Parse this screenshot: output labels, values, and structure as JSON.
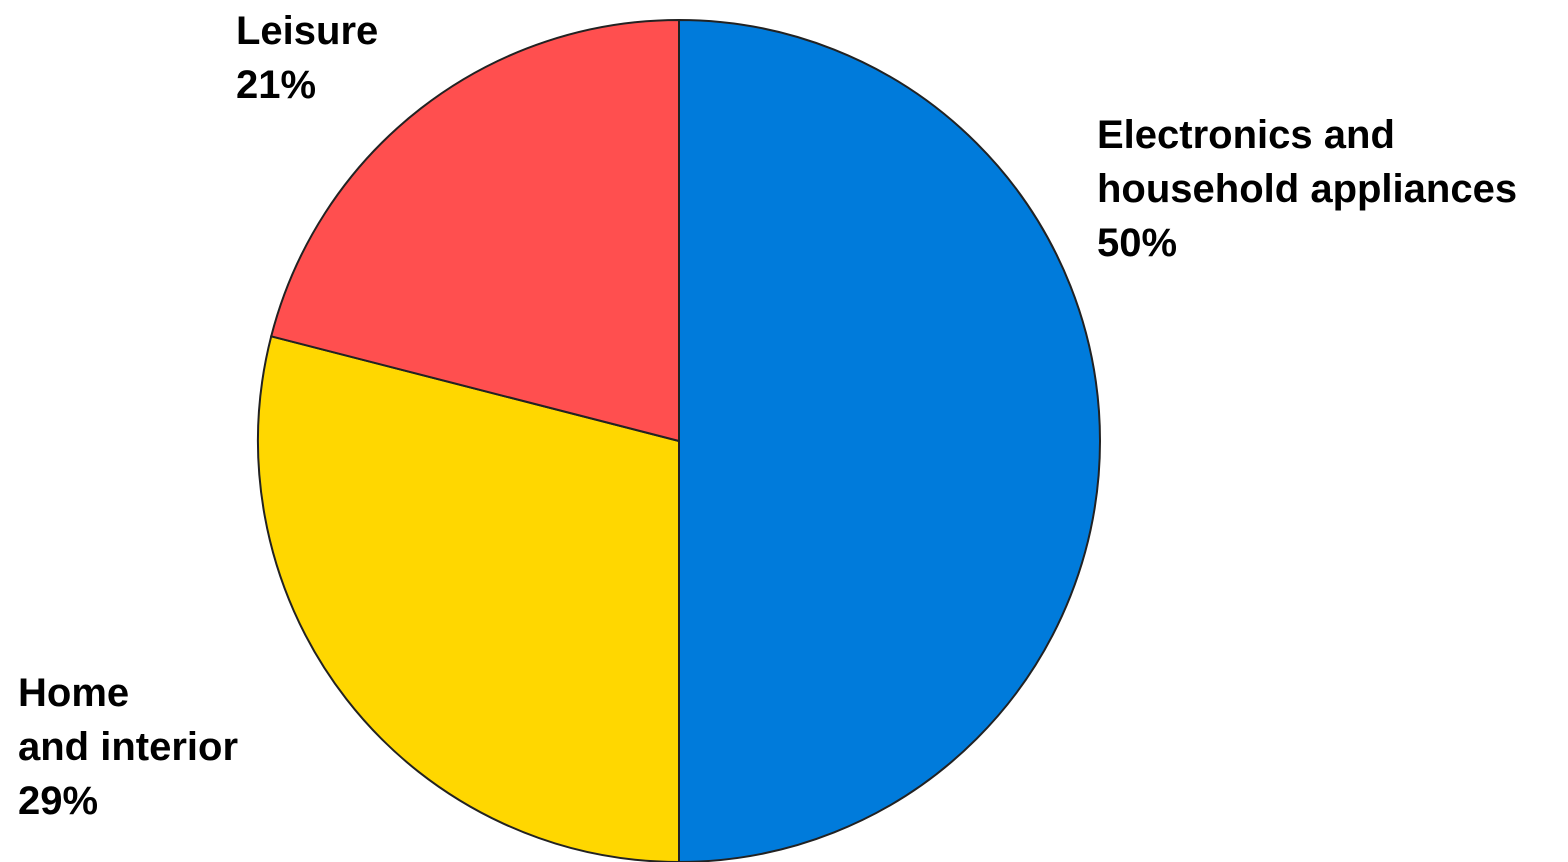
{
  "chart_data": {
    "type": "pie",
    "slices": [
      {
        "label_lines": [
          "Electronics and",
          "household appliances"
        ],
        "percent_label": "50%",
        "value": 50,
        "color": "#007BDB"
      },
      {
        "label_lines": [
          "Home",
          "and interior"
        ],
        "percent_label": "29%",
        "value": 29,
        "color": "#FFD700"
      },
      {
        "label_lines": [
          "Leisure"
        ],
        "percent_label": "21%",
        "value": 21,
        "color": "#FF4F4F"
      }
    ]
  }
}
